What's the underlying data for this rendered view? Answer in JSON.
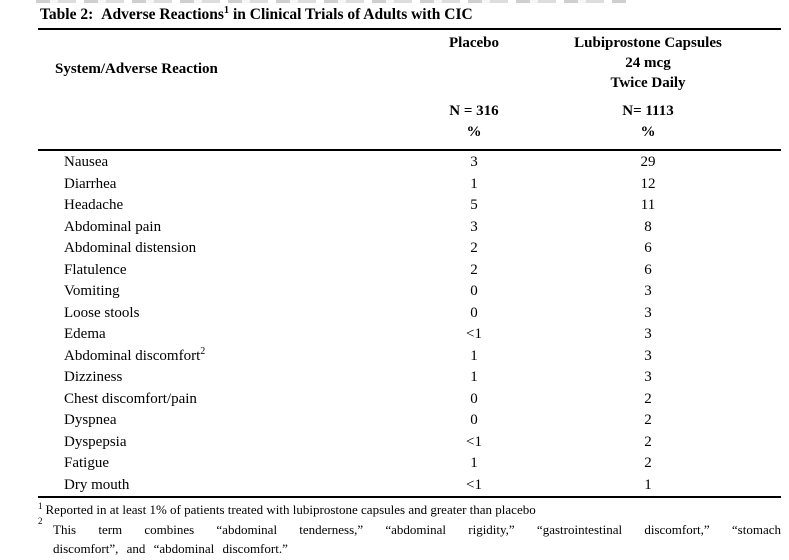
{
  "document": {
    "title": {
      "label": "Table 2:",
      "text_before_sup": "Adverse Reactions",
      "sup": "1",
      "text_after_sup": "in Clinical Trials of Adults with CIC"
    }
  },
  "table": {
    "row_header": "System/Adverse Reaction",
    "columns": [
      {
        "name": "Placebo",
        "lines": [
          "Placebo"
        ],
        "n": "N = 316",
        "unit": "%"
      },
      {
        "name": "Lubiprostone Capsules 24 mcg Twice Daily",
        "lines": [
          "Lubiprostone Capsules",
          "24 mcg",
          "Twice Daily"
        ],
        "n": "N= 1113",
        "unit": "%"
      }
    ],
    "rows": [
      {
        "label": "Nausea",
        "sup": "",
        "placebo": "3",
        "lubiprostone": "29"
      },
      {
        "label": "Diarrhea",
        "sup": "",
        "placebo": "1",
        "lubiprostone": "12"
      },
      {
        "label": "Headache",
        "sup": "",
        "placebo": "5",
        "lubiprostone": "11"
      },
      {
        "label": "Abdominal pain",
        "sup": "",
        "placebo": "3",
        "lubiprostone": "8"
      },
      {
        "label": "Abdominal distension",
        "sup": "",
        "placebo": "2",
        "lubiprostone": "6"
      },
      {
        "label": "Flatulence",
        "sup": "",
        "placebo": "2",
        "lubiprostone": "6"
      },
      {
        "label": "Vomiting",
        "sup": "",
        "placebo": "0",
        "lubiprostone": "3"
      },
      {
        "label": "Loose stools",
        "sup": "",
        "placebo": "0",
        "lubiprostone": "3"
      },
      {
        "label": "Edema",
        "sup": "",
        "placebo": "<1",
        "lubiprostone": "3"
      },
      {
        "label": "Abdominal discomfort",
        "sup": "2",
        "placebo": "1",
        "lubiprostone": "3"
      },
      {
        "label": "Dizziness",
        "sup": "",
        "placebo": "1",
        "lubiprostone": "3"
      },
      {
        "label": "Chest discomfort/pain",
        "sup": "",
        "placebo": "0",
        "lubiprostone": "2"
      },
      {
        "label": "Dyspnea",
        "sup": "",
        "placebo": "0",
        "lubiprostone": "2"
      },
      {
        "label": "Dyspepsia",
        "sup": "",
        "placebo": "<1",
        "lubiprostone": "2"
      },
      {
        "label": "Fatigue",
        "sup": "",
        "placebo": "1",
        "lubiprostone": "2"
      },
      {
        "label": "Dry mouth",
        "sup": "",
        "placebo": "<1",
        "lubiprostone": "1"
      }
    ]
  },
  "footnotes": [
    {
      "marker": "1",
      "text": "Reported in at least 1% of patients treated with lubiprostone capsules and greater than placebo"
    },
    {
      "marker": "2",
      "line1": "This term combines “abdominal tenderness,” “abdominal rigidity,” “gastrointestinal discomfort,” “stomach",
      "line2": "discomfort”, and “abdominal discomfort.”"
    }
  ]
}
